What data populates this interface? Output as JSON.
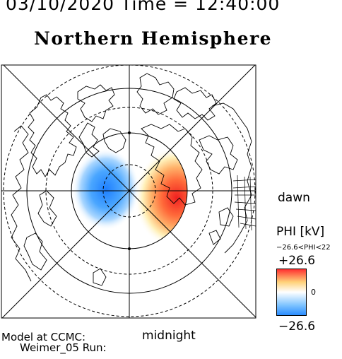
{
  "header": {
    "datetime": "03/10/2020 Time = 12:40:00",
    "hemisphere": "Northern Hemisphere"
  },
  "map": {
    "label_dawn": "dawn",
    "label_midnight": "midnight",
    "model_line": "Model at CCMC:",
    "run_line": "Weimer_05 Run:",
    "potential_peak_kv": 26.6,
    "negative_cell": "dusk side",
    "positive_cell": "dawn side"
  },
  "colorbar": {
    "title": "PHI [kV]",
    "range_text": "−26.6<PHI<22",
    "max_label": "+26.6",
    "zero_label": "0",
    "min_label": "−26.6",
    "colors": [
      "#2a8cff",
      "#ffffff",
      "#ff3030"
    ]
  },
  "colors": {
    "negative": "#2a8cff",
    "positive": "#ff3030",
    "coastline": "#000000"
  }
}
